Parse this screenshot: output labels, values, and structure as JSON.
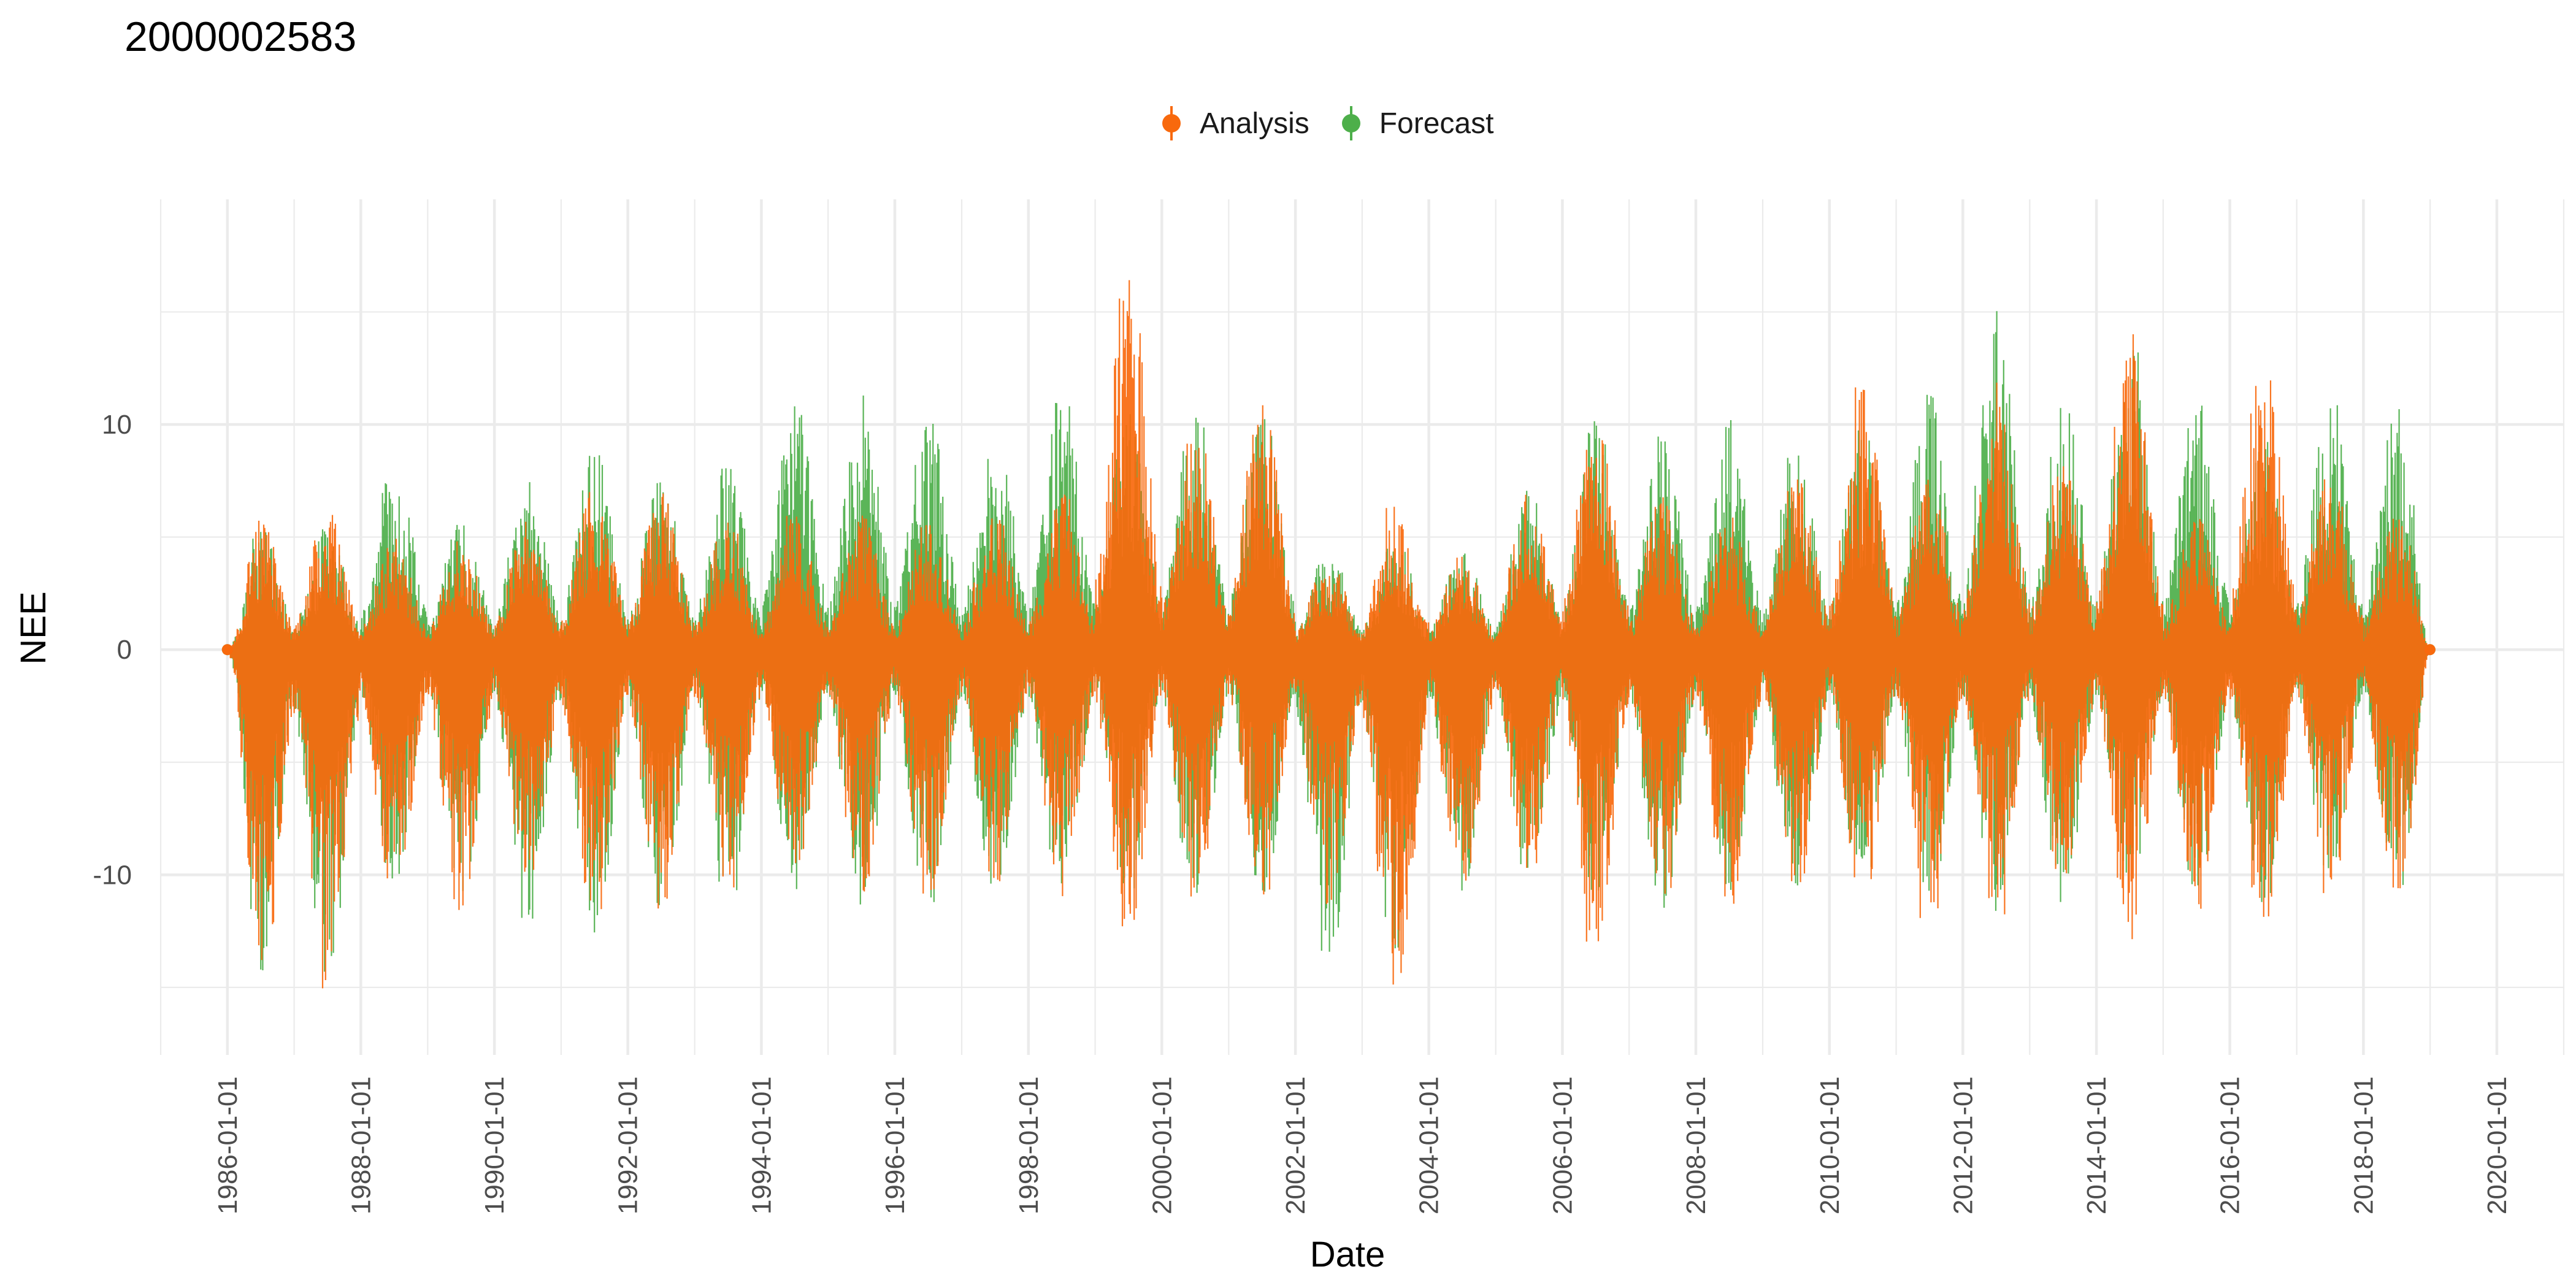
{
  "chart_data": {
    "type": "line",
    "title": "2000002583",
    "xlabel": "Date",
    "ylabel": "NEE",
    "x_ticks": [
      "1986-01-01",
      "1988-01-01",
      "1990-01-01",
      "1992-01-01",
      "1994-01-01",
      "1996-01-01",
      "1998-01-01",
      "2000-01-01",
      "2002-01-01",
      "2004-01-01",
      "2006-01-01",
      "2008-01-01",
      "2010-01-01",
      "2012-01-01",
      "2014-01-01",
      "2016-01-01",
      "2018-01-01",
      "2020-01-01"
    ],
    "y_ticks": [
      -10,
      0,
      10
    ],
    "xlim": [
      "1985-01-01",
      "2021-01-01"
    ],
    "ylim": [
      -18,
      20
    ],
    "grid": true,
    "legend_position": "top",
    "start_date": "1986-01-01",
    "end_date": "2018-12-31",
    "series": [
      {
        "name": "Analysis",
        "color": "#F8690D",
        "yearly_envelope": [
          {
            "year": 1986,
            "max": 6.0,
            "min": -15.8
          },
          {
            "year": 1987,
            "max": 6.3,
            "min": -15.8
          },
          {
            "year": 1988,
            "max": 5.0,
            "min": -11.2
          },
          {
            "year": 1989,
            "max": 5.0,
            "min": -11.8
          },
          {
            "year": 1990,
            "max": 6.0,
            "min": -11.0
          },
          {
            "year": 1991,
            "max": 7.3,
            "min": -12.8
          },
          {
            "year": 1992,
            "max": 7.0,
            "min": -11.8
          },
          {
            "year": 1993,
            "max": 6.0,
            "min": -11.0
          },
          {
            "year": 1994,
            "max": 6.0,
            "min": -10.5
          },
          {
            "year": 1995,
            "max": 6.0,
            "min": -11.0
          },
          {
            "year": 1996,
            "max": 6.0,
            "min": -11.2
          },
          {
            "year": 1997,
            "max": 6.0,
            "min": -10.5
          },
          {
            "year": 1998,
            "max": 7.0,
            "min": -11.0
          },
          {
            "year": 1999,
            "max": 17.3,
            "min": -13.0
          },
          {
            "year": 2000,
            "max": 10.3,
            "min": -11.5
          },
          {
            "year": 2001,
            "max": 11.5,
            "min": -11.0
          },
          {
            "year": 2002,
            "max": 4.2,
            "min": -11.5
          },
          {
            "year": 2003,
            "max": 6.7,
            "min": -16.5
          },
          {
            "year": 2004,
            "max": 4.2,
            "min": -11.0
          },
          {
            "year": 2005,
            "max": 7.0,
            "min": -11.0
          },
          {
            "year": 2006,
            "max": 11.3,
            "min": -13.4
          },
          {
            "year": 2007,
            "max": 7.0,
            "min": -11.0
          },
          {
            "year": 2008,
            "max": 6.0,
            "min": -11.9
          },
          {
            "year": 2009,
            "max": 8.0,
            "min": -11.0
          },
          {
            "year": 2010,
            "max": 11.7,
            "min": -11.4
          },
          {
            "year": 2011,
            "max": 8.0,
            "min": -12.0
          },
          {
            "year": 2012,
            "max": 12.2,
            "min": -12.0
          },
          {
            "year": 2013,
            "max": 9.0,
            "min": -11.0
          },
          {
            "year": 2014,
            "max": 14.3,
            "min": -13.0
          },
          {
            "year": 2015,
            "max": 6.0,
            "min": -12.0
          },
          {
            "year": 2016,
            "max": 13.2,
            "min": -13.0
          },
          {
            "year": 2017,
            "max": 8.0,
            "min": -11.0
          },
          {
            "year": 2018,
            "max": 6.0,
            "min": -10.8
          }
        ]
      },
      {
        "name": "Forecast",
        "color": "#4DAF4A",
        "yearly_envelope": [
          {
            "year": 1986,
            "max": 5.5,
            "min": -14.5
          },
          {
            "year": 1987,
            "max": 5.5,
            "min": -15.0
          },
          {
            "year": 1988,
            "max": 8.6,
            "min": -11.0
          },
          {
            "year": 1989,
            "max": 6.0,
            "min": -11.5
          },
          {
            "year": 1990,
            "max": 7.7,
            "min": -12.1
          },
          {
            "year": 1991,
            "max": 9.0,
            "min": -12.8
          },
          {
            "year": 1992,
            "max": 7.6,
            "min": -11.8
          },
          {
            "year": 1993,
            "max": 8.2,
            "min": -11.7
          },
          {
            "year": 1994,
            "max": 11.4,
            "min": -11.0
          },
          {
            "year": 1995,
            "max": 11.5,
            "min": -11.4
          },
          {
            "year": 1996,
            "max": 10.6,
            "min": -12.0
          },
          {
            "year": 1997,
            "max": 10.1,
            "min": -11.0
          },
          {
            "year": 1998,
            "max": 11.6,
            "min": -11.5
          },
          {
            "year": 1999,
            "max": 10.8,
            "min": -11.0
          },
          {
            "year": 2000,
            "max": 11.0,
            "min": -11.8
          },
          {
            "year": 2001,
            "max": 11.0,
            "min": -11.0
          },
          {
            "year": 2002,
            "max": 4.5,
            "min": -14.7
          },
          {
            "year": 2003,
            "max": 5.0,
            "min": -14.0
          },
          {
            "year": 2004,
            "max": 4.4,
            "min": -11.0
          },
          {
            "year": 2005,
            "max": 7.2,
            "min": -11.0
          },
          {
            "year": 2006,
            "max": 10.4,
            "min": -11.6
          },
          {
            "year": 2007,
            "max": 9.9,
            "min": -11.6
          },
          {
            "year": 2008,
            "max": 10.2,
            "min": -11.0
          },
          {
            "year": 2009,
            "max": 9.0,
            "min": -11.0
          },
          {
            "year": 2010,
            "max": 10.3,
            "min": -11.0
          },
          {
            "year": 2011,
            "max": 11.5,
            "min": -11.7
          },
          {
            "year": 2012,
            "max": 15.1,
            "min": -11.7
          },
          {
            "year": 2013,
            "max": 11.4,
            "min": -11.5
          },
          {
            "year": 2014,
            "max": 13.7,
            "min": -11.0
          },
          {
            "year": 2015,
            "max": 11.3,
            "min": -11.0
          },
          {
            "year": 2016,
            "max": 9.4,
            "min": -11.5
          },
          {
            "year": 2017,
            "max": 11.1,
            "min": -10.5
          },
          {
            "year": 2018,
            "max": 10.7,
            "min": -11.3
          }
        ]
      }
    ]
  }
}
